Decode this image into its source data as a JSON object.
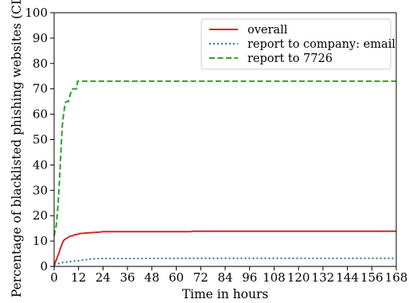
{
  "chart_data": {
    "type": "line",
    "xlabel": "Time in hours",
    "ylabel": "Percentage of blacklisted phishing websites (CDF)",
    "xlim": [
      0,
      168
    ],
    "ylim": [
      0,
      100
    ],
    "xticks": [
      0,
      12,
      24,
      36,
      48,
      60,
      72,
      84,
      96,
      108,
      120,
      132,
      144,
      156,
      168
    ],
    "yticks": [
      0,
      10,
      20,
      30,
      40,
      50,
      60,
      70,
      80,
      90,
      100
    ],
    "grid": false,
    "legend_position": "top-right",
    "series": [
      {
        "name": "overall",
        "color": "#d62728",
        "style": "solid",
        "x": [
          0,
          0.5,
          1,
          1.5,
          2,
          2.5,
          3,
          3.5,
          4,
          4.5,
          5,
          6,
          7,
          8,
          9,
          10,
          11,
          12,
          13,
          14,
          16,
          18,
          20,
          22,
          24,
          30,
          40,
          50,
          60,
          67,
          68,
          80,
          100,
          120,
          140,
          168
        ],
        "y": [
          0,
          1.5,
          2.5,
          3.5,
          4.5,
          5.5,
          7,
          8,
          9,
          10,
          10.5,
          11,
          11.5,
          12,
          12,
          12.5,
          12.5,
          12.8,
          13,
          13,
          13.2,
          13.3,
          13.4,
          13.5,
          13.7,
          13.7,
          13.7,
          13.7,
          13.7,
          13.7,
          13.9,
          13.9,
          13.9,
          13.9,
          13.9,
          13.9
        ]
      },
      {
        "name": "report to company: email",
        "color": "#1f77b4",
        "style": "dotted",
        "x": [
          0,
          1,
          2,
          3,
          4,
          6,
          8,
          10,
          12,
          14,
          16,
          18,
          20,
          24,
          30,
          40,
          60,
          80,
          100,
          120,
          168
        ],
        "y": [
          0.8,
          1.0,
          1.1,
          1.3,
          1.5,
          1.7,
          1.9,
          2.1,
          2.3,
          2.5,
          2.7,
          2.9,
          3.0,
          3.1,
          3.1,
          3.1,
          3.2,
          3.2,
          3.2,
          3.2,
          3.2
        ]
      },
      {
        "name": "report to 7726",
        "color": "#2ca02c",
        "style": "dashed",
        "x": [
          0,
          0.5,
          1,
          1.5,
          2,
          2.5,
          3,
          3.5,
          4,
          4.5,
          5,
          5.5,
          6,
          7,
          8,
          9,
          10,
          11,
          11.5,
          12,
          14,
          24,
          60,
          100,
          140,
          168
        ],
        "y": [
          12,
          14,
          16,
          20,
          25,
          32,
          40,
          48,
          55,
          59,
          62,
          64.5,
          65,
          65,
          68,
          70,
          70,
          70,
          73,
          73,
          73,
          73,
          73,
          73,
          73,
          73
        ]
      }
    ]
  }
}
